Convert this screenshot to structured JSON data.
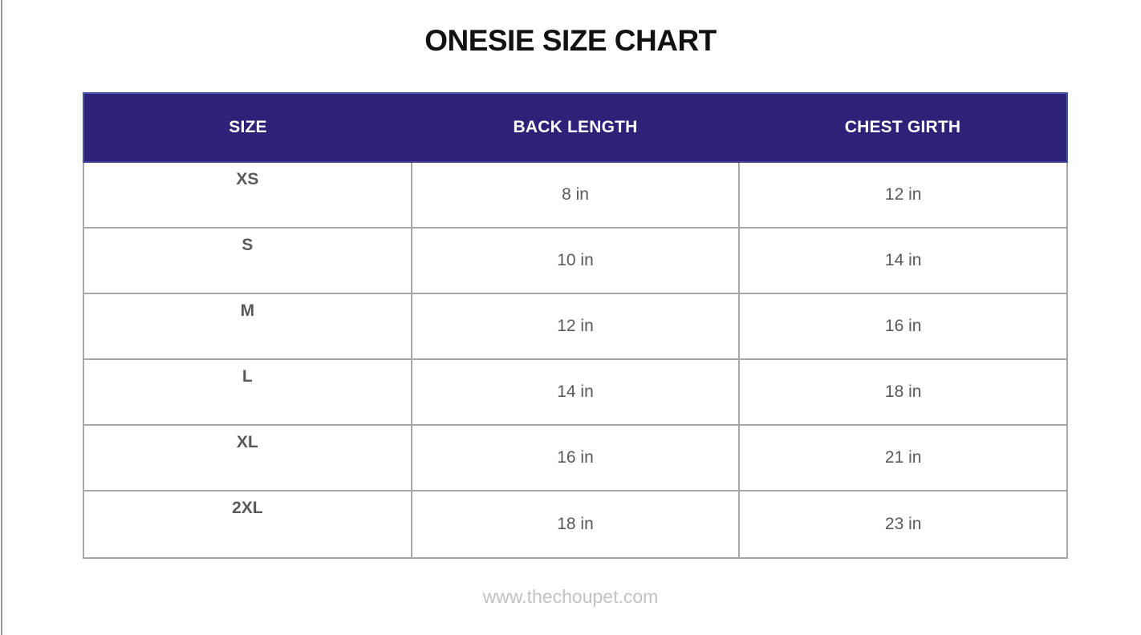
{
  "page": {
    "title": "ONESIE SIZE CHART",
    "footer": "www.thechoupet.com"
  },
  "table": {
    "headers": [
      "SIZE",
      "BACK LENGTH",
      "CHEST GIRTH"
    ],
    "rows": [
      {
        "size": "XS",
        "back_length": "8 in",
        "chest_girth": "12 in"
      },
      {
        "size": "S",
        "back_length": "10 in",
        "chest_girth": "14 in"
      },
      {
        "size": "M",
        "back_length": "12 in",
        "chest_girth": "16 in"
      },
      {
        "size": "L",
        "back_length": "14 in",
        "chest_girth": "18 in"
      },
      {
        "size": "XL",
        "back_length": "16 in",
        "chest_girth": "21 in"
      },
      {
        "size": "2XL",
        "back_length": "18 in",
        "chest_girth": "23 in"
      }
    ]
  },
  "colors": {
    "header_bg": "#2d2178",
    "header_border": "#4a58a8",
    "grid_line": "#a8a8a8",
    "body_text": "#595959",
    "footer_text": "#c2c2c2",
    "title_text": "#111111"
  }
}
